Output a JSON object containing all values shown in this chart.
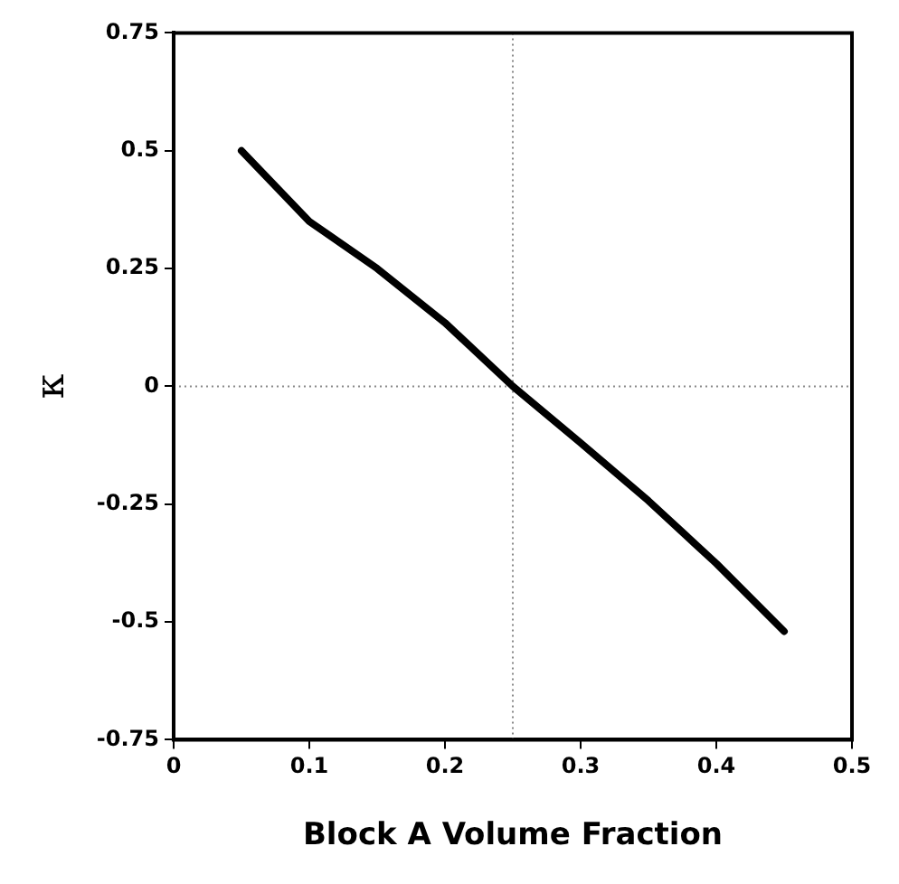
{
  "chart_data": {
    "type": "line",
    "xlabel": "Block A Volume Fraction",
    "ylabel": "κ",
    "x": [
      0.05,
      0.1,
      0.15,
      0.2,
      0.25,
      0.3,
      0.35,
      0.4,
      0.45
    ],
    "series": [
      {
        "color": "#000000",
        "values": [
          0.5,
          0.35,
          0.25,
          0.135,
          0,
          -0.12,
          -0.243,
          -0.376,
          -0.52
        ]
      }
    ],
    "xlim": [
      0,
      0.5
    ],
    "xticks": [
      0,
      0.1,
      0.2,
      0.3,
      0.4,
      0.5
    ],
    "ylim": [
      -0.75,
      0.75
    ],
    "yticks": [
      -0.75,
      -0.5,
      -0.25,
      0,
      0.25,
      0.5,
      0.75
    ],
    "ref_lines": [
      {
        "axis": "y",
        "value": 0,
        "line_style": "dotted",
        "color": "#888888"
      },
      {
        "axis": "x",
        "value": 0.25,
        "line_style": "dotted",
        "color": "#888888"
      }
    ],
    "grid": false,
    "legend": false,
    "marker": "none",
    "line_style": "solid"
  }
}
